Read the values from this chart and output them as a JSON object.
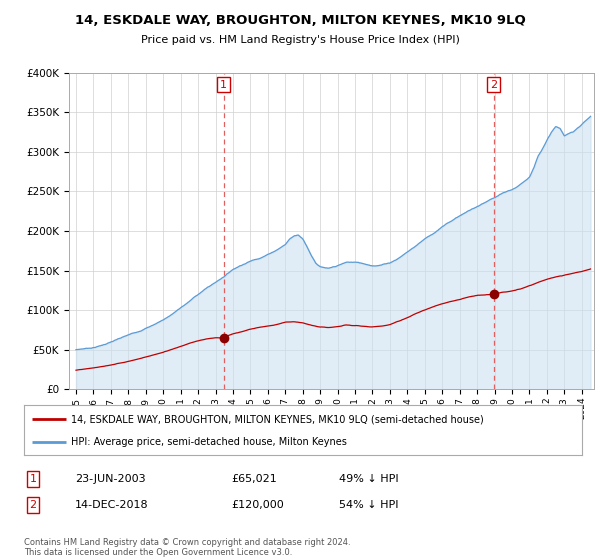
{
  "title": "14, ESKDALE WAY, BROUGHTON, MILTON KEYNES, MK10 9LQ",
  "subtitle": "Price paid vs. HM Land Registry's House Price Index (HPI)",
  "legend_line1": "14, ESKDALE WAY, BROUGHTON, MILTON KEYNES, MK10 9LQ (semi-detached house)",
  "legend_line2": "HPI: Average price, semi-detached house, Milton Keynes",
  "table_row1": [
    "1",
    "23-JUN-2003",
    "£65,021",
    "49% ↓ HPI"
  ],
  "table_row2": [
    "2",
    "14-DEC-2018",
    "£120,000",
    "54% ↓ HPI"
  ],
  "footnote": "Contains HM Land Registry data © Crown copyright and database right 2024.\nThis data is licensed under the Open Government Licence v3.0.",
  "transaction1_year": 2003.47,
  "transaction1_price": 65021,
  "transaction2_year": 2018.95,
  "transaction2_price": 120000,
  "hpi_color": "#5b9bd5",
  "hpi_fill_color": "#cce0f0",
  "price_color": "#c00000",
  "marker_color": "#8b0000",
  "vline_color": "#e06060",
  "ylim": [
    0,
    400000
  ],
  "xlim_start": 1994.6,
  "xlim_end": 2024.7,
  "background_color": "#ffffff",
  "grid_color": "#d0d0d0",
  "hpi_years": [
    1995,
    1995.5,
    1996,
    1996.5,
    1997,
    1997.5,
    1998,
    1998.5,
    1999,
    1999.5,
    2000,
    2000.5,
    2001,
    2001.5,
    2002,
    2002.5,
    2003,
    2003.5,
    2004,
    2004.5,
    2005,
    2005.5,
    2006,
    2006.5,
    2007,
    2007.25,
    2007.5,
    2007.75,
    2008,
    2008.25,
    2008.5,
    2008.75,
    2009,
    2009.5,
    2010,
    2010.5,
    2011,
    2011.5,
    2012,
    2012.5,
    2013,
    2013.5,
    2014,
    2014.5,
    2015,
    2015.5,
    2016,
    2016.5,
    2017,
    2017.5,
    2018,
    2018.5,
    2019,
    2019.5,
    2020,
    2020.5,
    2021,
    2021.25,
    2021.5,
    2021.75,
    2022,
    2022.25,
    2022.5,
    2022.75,
    2023,
    2023.5,
    2024,
    2024.5
  ],
  "hpi_values": [
    50000,
    51500,
    53000,
    56000,
    60000,
    64000,
    68000,
    72000,
    77000,
    82000,
    88000,
    95000,
    103000,
    111000,
    120000,
    128000,
    135000,
    143000,
    152000,
    158000,
    163000,
    167000,
    172000,
    178000,
    185000,
    192000,
    196000,
    198000,
    193000,
    183000,
    172000,
    163000,
    158000,
    155000,
    158000,
    162000,
    162000,
    160000,
    158000,
    159000,
    162000,
    168000,
    176000,
    184000,
    193000,
    200000,
    208000,
    215000,
    222000,
    228000,
    233000,
    238000,
    243000,
    248000,
    252000,
    258000,
    268000,
    280000,
    295000,
    305000,
    315000,
    325000,
    332000,
    330000,
    320000,
    325000,
    335000,
    345000
  ],
  "red_years": [
    1995,
    1995.5,
    1996,
    1996.5,
    1997,
    1997.5,
    1998,
    1998.5,
    1999,
    1999.5,
    2000,
    2000.5,
    2001,
    2001.5,
    2002,
    2002.5,
    2003,
    2003.47,
    2003.5,
    2004,
    2004.5,
    2005,
    2005.5,
    2006,
    2006.5,
    2007,
    2007.5,
    2008,
    2008.5,
    2009,
    2009.5,
    2010,
    2010.5,
    2011,
    2011.5,
    2012,
    2012.5,
    2013,
    2013.5,
    2014,
    2014.5,
    2015,
    2015.5,
    2016,
    2016.5,
    2017,
    2017.5,
    2018,
    2018.95,
    2019,
    2019.5,
    2020,
    2020.5,
    2021,
    2021.5,
    2022,
    2022.5,
    2023,
    2023.5,
    2024,
    2024.5
  ],
  "red_values": [
    24000,
    25000,
    26500,
    28000,
    30000,
    32500,
    35000,
    38000,
    41000,
    44000,
    47000,
    51000,
    55000,
    59000,
    62000,
    64000,
    65000,
    65021,
    66000,
    70000,
    73000,
    76000,
    78000,
    80000,
    82000,
    85000,
    86000,
    85000,
    82000,
    80000,
    79000,
    80000,
    82000,
    81000,
    80000,
    79000,
    80000,
    82000,
    86000,
    90000,
    95000,
    100000,
    104000,
    108000,
    111000,
    114000,
    117000,
    119000,
    120000,
    121000,
    123000,
    125000,
    128000,
    132000,
    136000,
    140000,
    143000,
    145000,
    147000,
    149000,
    152000
  ]
}
